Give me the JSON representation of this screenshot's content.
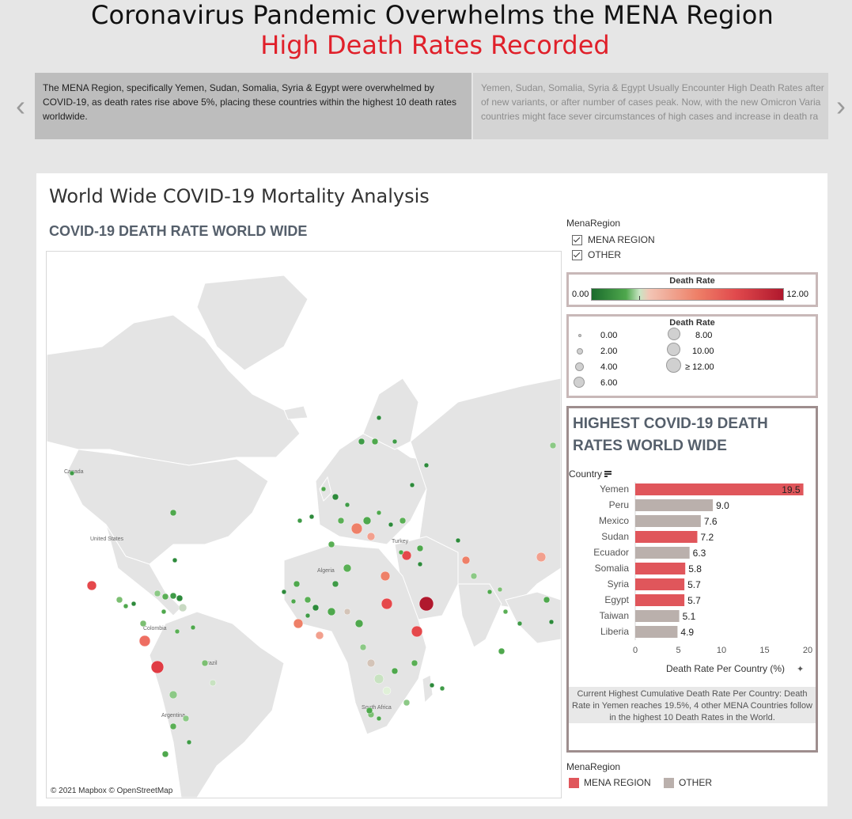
{
  "header": {
    "title": "Coronavirus Pandemic Overwhelms the MENA Region",
    "subtitle": "High Death Rates Recorded"
  },
  "story": {
    "active_text": "The MENA Region, specifically Yemen, Sudan, Somalia, Syria & Egypt were overwhelmed by COVID-19, as death rates rise above 5%, placing these countries within the highest 10 death rates worldwide.",
    "next_line1": "Yemen, Sudan, Somalia, Syria & Egypt Usually Encounter High Death Rates after",
    "next_line2": "of new variants, or after number of cases peak. Now, with the new Omicron Varia",
    "next_line3": "countries might face sever circumstances of high cases and increase in death ra",
    "prev_glyph": "‹",
    "next_glyph": "›"
  },
  "dashboard": {
    "title": "World Wide COVID-19 Mortality Analysis",
    "map_title": "COVID-19 DEATH RATE WORLD WIDE",
    "map_attribution": "© 2021 Mapbox © OpenStreetMap",
    "map_labels": [
      "Canada",
      "United States",
      "Turkey",
      "Algeria",
      "Colombia",
      "Brazil",
      "Argentina",
      "South Africa"
    ]
  },
  "filter": {
    "title": "MenaRegion",
    "options": [
      {
        "label": "MENA REGION",
        "checked": true
      },
      {
        "label": "OTHER",
        "checked": true
      }
    ]
  },
  "color_legend": {
    "title": "Death Rate",
    "min": "0.00",
    "max": "12.00",
    "colors": {
      "low": "#1a6b2c",
      "mid": "#f2c5b5",
      "high": "#b0182d"
    }
  },
  "size_legend": {
    "title": "Death Rate",
    "items": [
      "0.00",
      "2.00",
      "4.00",
      "6.00",
      "8.00",
      "10.00",
      "≥ 12.00"
    ]
  },
  "bar_chart_box": {
    "title_line1": "HIGHEST COVID-19 DEATH",
    "title_line2": "RATES WORLD WIDE",
    "country_header": "Country",
    "x_axis_label": "Death Rate Per Country (%)",
    "pin_icon": "📌",
    "caption": "Current Highest Cumulative Death Rate Per Country: Death Rate in Yemen reaches 19.5%, 4 other MENA Countries follow in the highest 10 Death Rates in the World."
  },
  "chart_data": {
    "type": "bar",
    "orientation": "horizontal",
    "categories": [
      "Yemen",
      "Peru",
      "Mexico",
      "Sudan",
      "Ecuador",
      "Somalia",
      "Syria",
      "Egypt",
      "Taiwan",
      "Liberia"
    ],
    "values": [
      19.5,
      9.0,
      7.6,
      7.2,
      6.3,
      5.8,
      5.7,
      5.7,
      5.1,
      4.9
    ],
    "value_labels": [
      "19.5",
      "9.0",
      "7.6",
      "7.2",
      "6.3",
      "5.8",
      "5.7",
      "5.7",
      "5.1",
      "4.9"
    ],
    "region": [
      "MENA REGION",
      "OTHER",
      "OTHER",
      "MENA REGION",
      "OTHER",
      "MENA REGION",
      "MENA REGION",
      "MENA REGION",
      "OTHER",
      "OTHER"
    ],
    "xlabel": "Death Rate Per Country (%)",
    "ylabel": "Country",
    "xlim": [
      0,
      20
    ],
    "xticks": [
      "0",
      "5",
      "10",
      "15",
      "20"
    ],
    "grid": false,
    "colors": {
      "MENA REGION": "#e0565b",
      "OTHER": "#bab0ac"
    }
  },
  "bottom_legend": {
    "title": "MenaRegion",
    "items": [
      {
        "label": "MENA REGION",
        "color": "#e0565b"
      },
      {
        "label": "OTHER",
        "color": "#bab0ac"
      }
    ]
  }
}
